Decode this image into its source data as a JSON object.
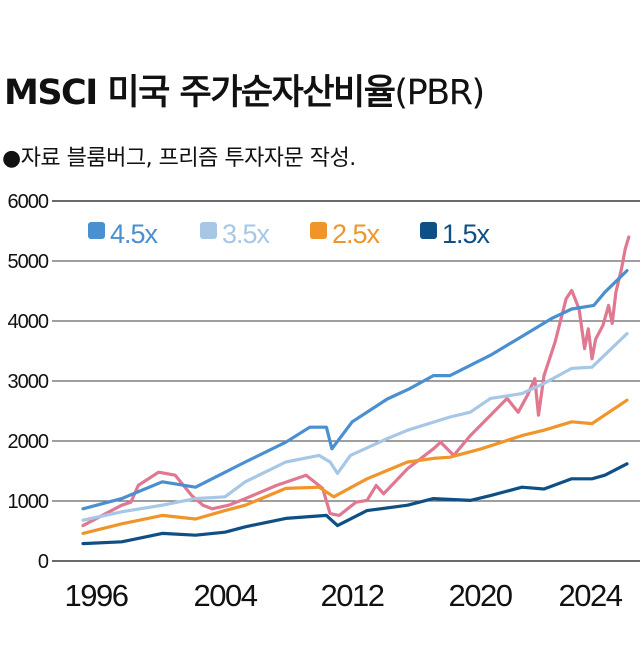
{
  "title": "MSCI 미국 주가순자산비율",
  "title_suffix": "(PBR)",
  "subtitle": "●자료  블룸버그, 프리즘 투자자문 작성.",
  "chart_data": {
    "type": "line",
    "title": "MSCI 미국 주가순자산비율(PBR)",
    "xlabel": "",
    "ylabel": "",
    "ylim": [
      0,
      6000
    ],
    "yticks": [
      "0",
      "1000",
      "2000",
      "3000",
      "4000",
      "5000",
      "6000"
    ],
    "xticks": [
      "1996",
      "2004",
      "2012",
      "2020",
      "2024"
    ],
    "grid": true,
    "legend_placement": "top-left",
    "series": [
      {
        "name": "4.5x",
        "color": "#4a8fd0",
        "points": [
          [
            1995.5,
            870
          ],
          [
            1997.6,
            1040
          ],
          [
            1999.8,
            1320
          ],
          [
            2001.6,
            1230
          ],
          [
            2002.5,
            1370
          ],
          [
            2004.3,
            1650
          ],
          [
            2006.5,
            1980
          ],
          [
            2007.8,
            2230
          ],
          [
            2008.7,
            2230
          ],
          [
            2009.0,
            1870
          ],
          [
            2010.1,
            2320
          ],
          [
            2012.0,
            2700
          ],
          [
            2013.2,
            2870
          ],
          [
            2014.5,
            3090
          ],
          [
            2015.4,
            3090
          ],
          [
            2017.6,
            3430
          ],
          [
            2019.4,
            3760
          ],
          [
            2020.9,
            4040
          ],
          [
            2022.0,
            4200
          ],
          [
            2023.2,
            4260
          ],
          [
            2023.8,
            4480
          ],
          [
            2025.0,
            4840
          ]
        ]
      },
      {
        "name": "3.5x",
        "color": "#a7c7e7",
        "points": [
          [
            1995.5,
            680
          ],
          [
            1997.6,
            820
          ],
          [
            1999.8,
            930
          ],
          [
            2001.6,
            1040
          ],
          [
            2003.2,
            1070
          ],
          [
            2004.3,
            1320
          ],
          [
            2006.5,
            1650
          ],
          [
            2008.3,
            1760
          ],
          [
            2008.9,
            1650
          ],
          [
            2009.3,
            1460
          ],
          [
            2010.0,
            1760
          ],
          [
            2012.0,
            2040
          ],
          [
            2013.1,
            2180
          ],
          [
            2015.4,
            2400
          ],
          [
            2016.5,
            2480
          ],
          [
            2017.6,
            2710
          ],
          [
            2019.3,
            2790
          ],
          [
            2020.5,
            2960
          ],
          [
            2022.0,
            3210
          ],
          [
            2023.1,
            3230
          ],
          [
            2025.0,
            3790
          ]
        ]
      },
      {
        "name": "2.5x",
        "color": "#f0952a",
        "points": [
          [
            1995.5,
            460
          ],
          [
            1997.6,
            620
          ],
          [
            1999.8,
            760
          ],
          [
            2001.6,
            700
          ],
          [
            2003.2,
            840
          ],
          [
            2004.3,
            930
          ],
          [
            2006.5,
            1210
          ],
          [
            2008.3,
            1230
          ],
          [
            2009.1,
            1070
          ],
          [
            2010.9,
            1370
          ],
          [
            2013.1,
            1650
          ],
          [
            2014.5,
            1710
          ],
          [
            2015.4,
            1730
          ],
          [
            2017.1,
            1870
          ],
          [
            2019.3,
            2090
          ],
          [
            2020.5,
            2180
          ],
          [
            2022.0,
            2320
          ],
          [
            2023.1,
            2290
          ],
          [
            2025.0,
            2680
          ]
        ]
      },
      {
        "name": "1.5x",
        "color": "#0e4f86",
        "points": [
          [
            1995.5,
            290
          ],
          [
            1997.6,
            320
          ],
          [
            1999.8,
            460
          ],
          [
            2001.6,
            430
          ],
          [
            2003.2,
            480
          ],
          [
            2004.3,
            570
          ],
          [
            2006.5,
            710
          ],
          [
            2008.7,
            760
          ],
          [
            2009.3,
            590
          ],
          [
            2010.9,
            840
          ],
          [
            2013.1,
            930
          ],
          [
            2014.5,
            1040
          ],
          [
            2016.5,
            1010
          ],
          [
            2017.6,
            1090
          ],
          [
            2019.3,
            1230
          ],
          [
            2020.5,
            1200
          ],
          [
            2022.0,
            1370
          ],
          [
            2023.1,
            1370
          ],
          [
            2023.8,
            1430
          ],
          [
            2025.0,
            1620
          ]
        ]
      },
      {
        "color": "#e07891",
        "points": [
          [
            1995.5,
            590
          ],
          [
            1997.6,
            930
          ],
          [
            1998.1,
            980
          ],
          [
            1998.5,
            1260
          ],
          [
            1999.6,
            1480
          ],
          [
            2000.5,
            1430
          ],
          [
            2001.4,
            1090
          ],
          [
            2002.0,
            930
          ],
          [
            2002.5,
            870
          ],
          [
            2003.4,
            930
          ],
          [
            2004.3,
            1040
          ],
          [
            2006.0,
            1260
          ],
          [
            2007.6,
            1430
          ],
          [
            2008.5,
            1210
          ],
          [
            2008.9,
            790
          ],
          [
            2009.4,
            760
          ],
          [
            2010.3,
            980
          ],
          [
            2010.9,
            1010
          ],
          [
            2011.4,
            1260
          ],
          [
            2011.8,
            1120
          ],
          [
            2013.1,
            1540
          ],
          [
            2014.5,
            1870
          ],
          [
            2014.9,
            1980
          ],
          [
            2015.6,
            1760
          ],
          [
            2016.5,
            2090
          ],
          [
            2017.6,
            2430
          ],
          [
            2018.5,
            2710
          ],
          [
            2019.1,
            2480
          ],
          [
            2019.6,
            2760
          ],
          [
            2020.0,
            3040
          ],
          [
            2020.2,
            2430
          ],
          [
            2020.5,
            3090
          ],
          [
            2021.1,
            3650
          ],
          [
            2021.7,
            4370
          ],
          [
            2022.0,
            4510
          ],
          [
            2022.4,
            4200
          ],
          [
            2022.7,
            3540
          ],
          [
            2022.9,
            3870
          ],
          [
            2023.1,
            3370
          ],
          [
            2023.3,
            3700
          ],
          [
            2023.7,
            3930
          ],
          [
            2024.0,
            4260
          ],
          [
            2024.2,
            3960
          ],
          [
            2024.4,
            4480
          ],
          [
            2024.7,
            4870
          ],
          [
            2024.9,
            5200
          ],
          [
            2025.1,
            5400
          ]
        ]
      }
    ]
  }
}
